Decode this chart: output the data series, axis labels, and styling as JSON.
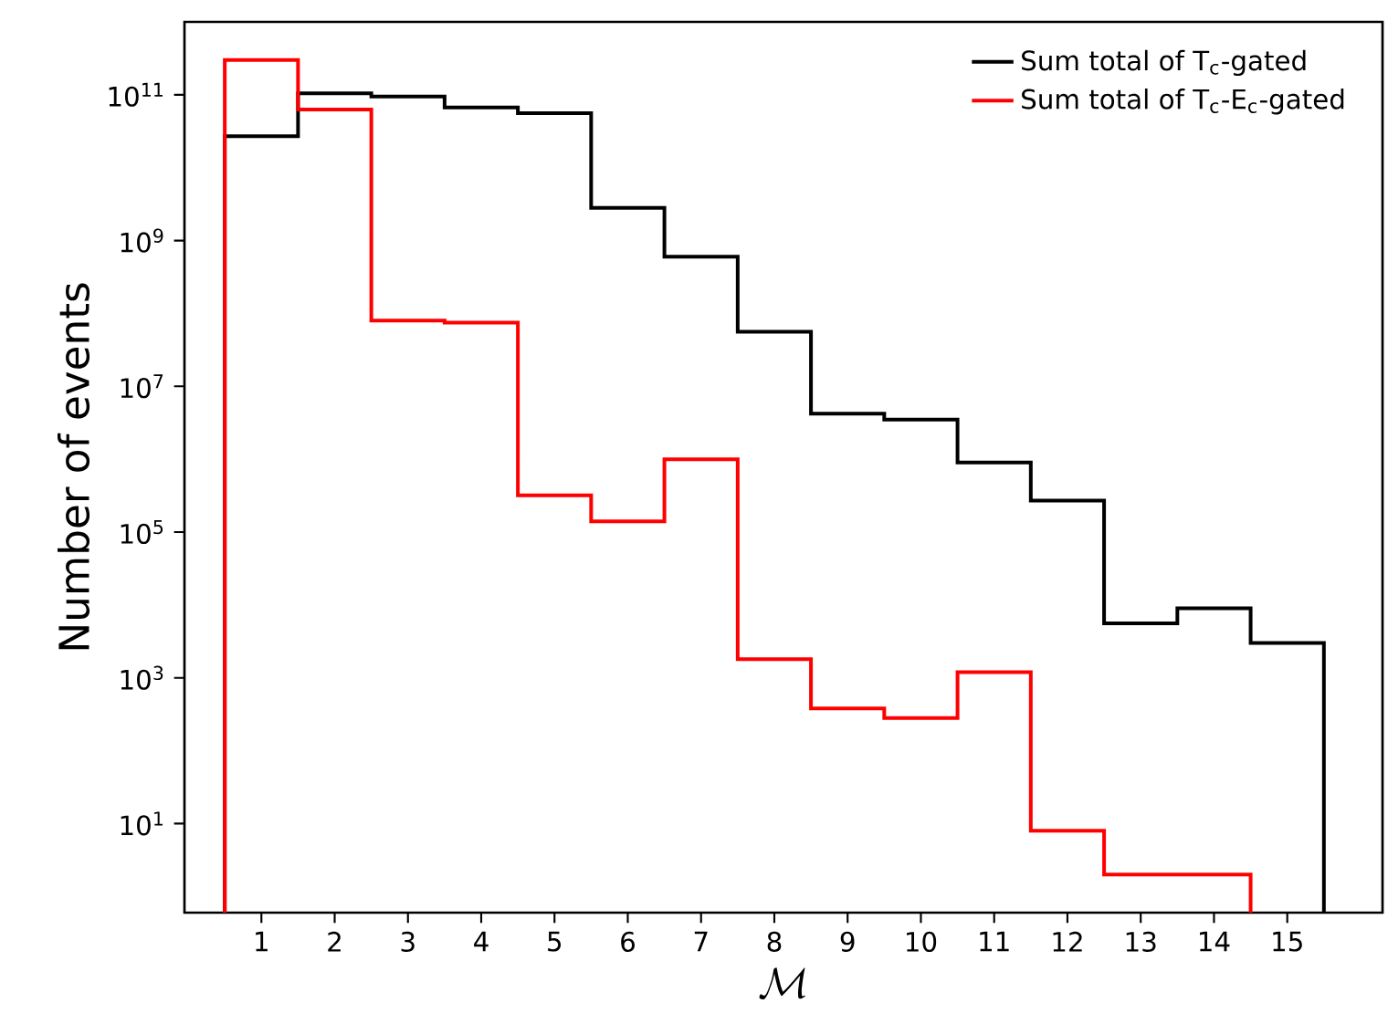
{
  "chart_data": {
    "type": "histogram",
    "xlabel": "\\mathcal{M}",
    "ylabel": "Number of events",
    "log": "y",
    "legend": "top right",
    "grid": false,
    "bins": [
      0.5,
      1.5,
      2.5,
      3.5,
      4.5,
      5.5,
      6.5,
      7.5,
      8.5,
      9.5,
      10.5,
      11.5,
      12.5,
      13.5,
      14.5,
      15.5
    ],
    "series": [
      {
        "name": "Sum total of T$_{c}$-gated",
        "color": "#000000",
        "values": [
          27000000000.0,
          105000000000.0,
          95000000000.0,
          67000000000.0,
          56000000000.0,
          2800000000.0,
          600000000.0,
          56000000.0,
          4200000.0,
          3500000.0,
          900000.0,
          270000.0,
          5600.0,
          9000.0,
          3000.0
        ]
      },
      {
        "name": "Sum total of T$_{c}$-E$_{c}$-gated",
        "color": "#ff0000",
        "bins": [
          0.5,
          1.5,
          2.5,
          3.5,
          4.5,
          5.5,
          6.5,
          7.5,
          8.5,
          9.5,
          10.5,
          11.5,
          12.5,
          13.5,
          14.5
        ],
        "values": [
          300000000000.0,
          63000000000.0,
          80000000.0,
          75000000.0,
          320000.0,
          140000.0,
          1000000.0,
          1800.0,
          380.0,
          280.0,
          1200.0,
          8,
          2,
          2
        ]
      }
    ],
    "xlim": [
      -0.05,
      16.3
    ],
    "ylim": [
      0.6,
      1000000000000.0
    ],
    "xticks": [
      1,
      2,
      3,
      4,
      5,
      6,
      7,
      8,
      9,
      10,
      11,
      12,
      13,
      14,
      15
    ],
    "yticks": [
      {
        "value": 10,
        "label": "10$^{1}$"
      },
      {
        "value": 1000,
        "label": "10$^{3}$"
      },
      {
        "value": 100000,
        "label": "10$^{5}$"
      },
      {
        "value": 10000000,
        "label": "10$^{7}$"
      },
      {
        "value": 1000000000,
        "label": "10$^{9}$"
      },
      {
        "value": 100000000000,
        "label": "10$^{11}$"
      }
    ]
  }
}
